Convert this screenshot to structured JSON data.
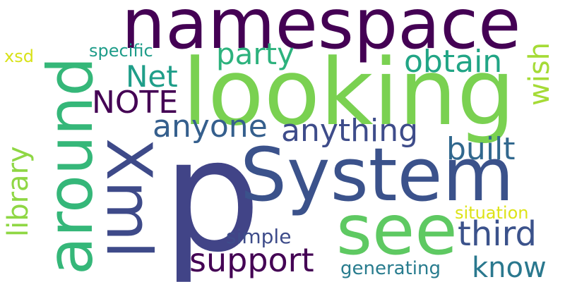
{
  "words": {
    "namespace": {
      "text": "namespace",
      "color": "#440154"
    },
    "looking": {
      "text": "looking",
      "color": "#7ad151"
    },
    "around": {
      "text": "around",
      "color": "#35b779"
    },
    "xml": {
      "text": "Xml",
      "color": "#3e4a89"
    },
    "p": {
      "text": "p",
      "color": "#414487"
    },
    "system": {
      "text": "System",
      "color": "#3b528b"
    },
    "see": {
      "text": "see",
      "color": "#5ec962"
    },
    "party": {
      "text": "party",
      "color": "#2db27d"
    },
    "obtain": {
      "text": "obtain",
      "color": "#21a585"
    },
    "net": {
      "text": "Net",
      "color": "#1f9e89"
    },
    "note": {
      "text": "NOTE",
      "color": "#440154"
    },
    "specific": {
      "text": "specific",
      "color": "#1e9c89"
    },
    "xsd": {
      "text": "xsd",
      "color": "#d8e219"
    },
    "wish": {
      "text": "wish",
      "color": "#a5db36"
    },
    "anyone": {
      "text": "anyone",
      "color": "#355f8d"
    },
    "anything": {
      "text": "anything",
      "color": "#3e4c8a"
    },
    "built": {
      "text": "built",
      "color": "#31688e"
    },
    "library": {
      "text": "library",
      "color": "#8fd744"
    },
    "third": {
      "text": "third",
      "color": "#3b528b"
    },
    "simple": {
      "text": "simple",
      "color": "#3e4c8a"
    },
    "support": {
      "text": "support",
      "color": "#440154"
    },
    "situation": {
      "text": "situation",
      "color": "#dde318"
    },
    "generating": {
      "text": "generating",
      "color": "#287c8e"
    },
    "know": {
      "text": "know",
      "color": "#2a788e"
    }
  }
}
